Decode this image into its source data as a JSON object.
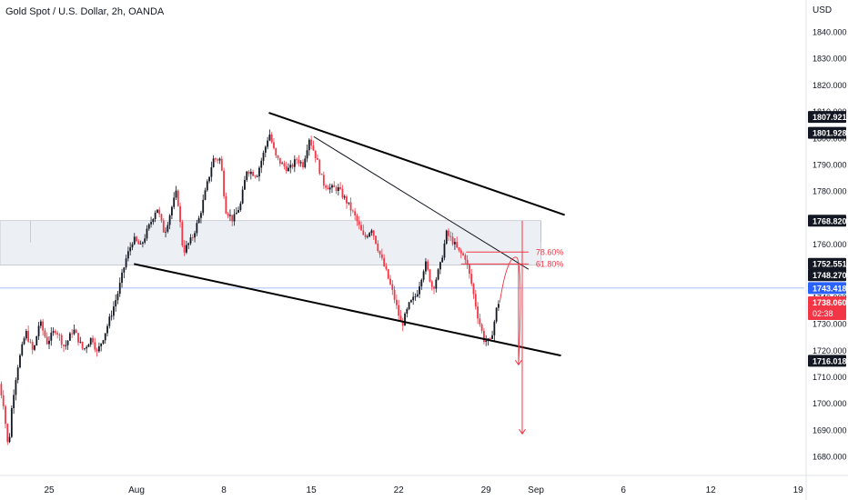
{
  "title": "Gold Spot / U.S. Dollar, 2h, OANDA",
  "currency": "USD",
  "colors": {
    "up": "#131722",
    "down": "#f23645",
    "fib": "#f23645",
    "current": "#f23645",
    "level_line": "#2962ff",
    "zone_fill": "#eceff3",
    "axis_text": "#131722"
  },
  "chart_data": {
    "type": "candlestick",
    "ylim": [
      1676,
      1848
    ],
    "y_ticks": [
      "1840.000",
      "1830.000",
      "1820.000",
      "1810.000",
      "1800.000",
      "1790.000",
      "1780.000",
      "1770.000",
      "1760.000",
      "1750.000",
      "1740.000",
      "1730.000",
      "1720.000",
      "1710.000",
      "1700.000",
      "1690.000",
      "1680.000"
    ],
    "x_ticks": [
      {
        "label": "25",
        "t": 0
      },
      {
        "label": "Aug",
        "t": 7
      },
      {
        "label": "8",
        "t": 14
      },
      {
        "label": "15",
        "t": 21
      },
      {
        "label": "22",
        "t": 28
      },
      {
        "label": "29",
        "t": 35
      },
      {
        "label": "Sep",
        "t": 39
      },
      {
        "label": "6",
        "t": 46
      },
      {
        "label": "12",
        "t": 53
      },
      {
        "label": "19",
        "t": 60
      }
    ],
    "price_path": [
      {
        "t": -4.0,
        "p": 1711
      },
      {
        "t": -3.5,
        "p": 1700
      },
      {
        "t": -3.1,
        "p": 1682
      },
      {
        "t": -2.8,
        "p": 1700
      },
      {
        "t": -2.4,
        "p": 1713
      },
      {
        "t": -1.7,
        "p": 1727
      },
      {
        "t": -1.1,
        "p": 1719
      },
      {
        "t": -0.6,
        "p": 1731
      },
      {
        "t": 0.0,
        "p": 1723
      },
      {
        "t": 0.7,
        "p": 1728
      },
      {
        "t": 1.4,
        "p": 1721
      },
      {
        "t": 2.1,
        "p": 1728
      },
      {
        "t": 2.9,
        "p": 1720
      },
      {
        "t": 3.6,
        "p": 1725
      },
      {
        "t": 4.0,
        "p": 1719
      },
      {
        "t": 4.6,
        "p": 1726
      },
      {
        "t": 5.1,
        "p": 1733
      },
      {
        "t": 5.7,
        "p": 1742
      },
      {
        "t": 6.3,
        "p": 1754
      },
      {
        "t": 6.9,
        "p": 1762
      },
      {
        "t": 7.5,
        "p": 1759
      },
      {
        "t": 8.2,
        "p": 1767
      },
      {
        "t": 8.8,
        "p": 1774
      },
      {
        "t": 9.4,
        "p": 1764
      },
      {
        "t": 10.0,
        "p": 1774
      },
      {
        "t": 10.4,
        "p": 1780
      },
      {
        "t": 10.9,
        "p": 1757
      },
      {
        "t": 11.6,
        "p": 1762
      },
      {
        "t": 12.2,
        "p": 1770
      },
      {
        "t": 12.8,
        "p": 1782
      },
      {
        "t": 13.3,
        "p": 1792
      },
      {
        "t": 13.9,
        "p": 1792
      },
      {
        "t": 14.3,
        "p": 1773
      },
      {
        "t": 14.9,
        "p": 1769
      },
      {
        "t": 15.5,
        "p": 1775
      },
      {
        "t": 16.0,
        "p": 1788
      },
      {
        "t": 16.8,
        "p": 1786
      },
      {
        "t": 17.4,
        "p": 1795
      },
      {
        "t": 17.8,
        "p": 1802
      },
      {
        "t": 18.3,
        "p": 1793
      },
      {
        "t": 18.8,
        "p": 1790
      },
      {
        "t": 19.4,
        "p": 1788
      },
      {
        "t": 20.0,
        "p": 1792
      },
      {
        "t": 20.5,
        "p": 1790
      },
      {
        "t": 21.0,
        "p": 1800
      },
      {
        "t": 21.6,
        "p": 1792
      },
      {
        "t": 22.1,
        "p": 1783
      },
      {
        "t": 22.7,
        "p": 1781
      },
      {
        "t": 23.3,
        "p": 1781
      },
      {
        "t": 24.0,
        "p": 1776
      },
      {
        "t": 24.7,
        "p": 1770
      },
      {
        "t": 25.4,
        "p": 1762
      },
      {
        "t": 26.0,
        "p": 1766
      },
      {
        "t": 26.6,
        "p": 1757
      },
      {
        "t": 27.2,
        "p": 1749
      },
      {
        "t": 27.8,
        "p": 1740
      },
      {
        "t": 28.4,
        "p": 1729
      },
      {
        "t": 29.0,
        "p": 1737
      },
      {
        "t": 29.6,
        "p": 1741
      },
      {
        "t": 30.3,
        "p": 1753
      },
      {
        "t": 30.9,
        "p": 1743
      },
      {
        "t": 31.5,
        "p": 1752
      },
      {
        "t": 32.0,
        "p": 1764
      },
      {
        "t": 32.5,
        "p": 1761
      },
      {
        "t": 33.0,
        "p": 1757
      },
      {
        "t": 33.5,
        "p": 1755
      },
      {
        "t": 34.0,
        "p": 1745
      },
      {
        "t": 34.5,
        "p": 1733
      },
      {
        "t": 35.0,
        "p": 1724
      },
      {
        "t": 35.5,
        "p": 1723
      },
      {
        "t": 35.8,
        "p": 1730
      },
      {
        "t": 36.1,
        "p": 1738
      }
    ],
    "trendlines": [
      {
        "name": "upper-channel-line",
        "t1": 17.6,
        "p1": 1809.5,
        "t2": 41.3,
        "p2": 1771,
        "width": 2,
        "color": "#000000"
      },
      {
        "name": "lower-channel-line",
        "t1": 6.8,
        "p1": 1752.5,
        "t2": 41.0,
        "p2": 1718,
        "width": 2,
        "color": "#000000"
      },
      {
        "name": "inner-descending-line",
        "t1": 21.2,
        "p1": 1800.5,
        "t2": 38.4,
        "p2": 1750.5,
        "width": 1,
        "color": "#131722"
      }
    ],
    "zone": {
      "p_top": 1768.82,
      "p_bottom": 1760.3,
      "t_end": 39.4,
      "divider_t": -1.5
    },
    "horizontal_level": 1743.418,
    "fib_levels": [
      {
        "label": "78.60%",
        "price": 1757.0,
        "t1": 33.4,
        "t2": 38.4
      },
      {
        "label": "61.80%",
        "price": 1752.5,
        "t1": 33.0,
        "t2": 38.4
      }
    ],
    "projection_arrows": [
      {
        "name": "short-projection-arrow",
        "t": 37.6,
        "p_top": 1752.5,
        "p_bottom": 1714.5
      },
      {
        "name": "long-projection-arrow",
        "t": 37.9,
        "p_top": 1768.8,
        "p_bottom": 1688.5
      }
    ],
    "price_labels": [
      {
        "text": "1807.921",
        "price": 1807.921,
        "style": "dark"
      },
      {
        "text": "1801.928",
        "price": 1801.928,
        "style": "dark"
      },
      {
        "text": "1768.820",
        "price": 1768.82,
        "style": "dark"
      },
      {
        "text": "1752.551",
        "price": 1752.551,
        "style": "dark"
      },
      {
        "text": "1748.270",
        "price": 1748.27,
        "style": "dark"
      },
      {
        "text": "1743.418",
        "price": 1743.418,
        "style": "blue"
      },
      {
        "text": "1738.060",
        "price": 1738.06,
        "style": "red",
        "sub": "02:38"
      },
      {
        "text": "1716.018",
        "price": 1716.018,
        "style": "dark"
      }
    ]
  }
}
